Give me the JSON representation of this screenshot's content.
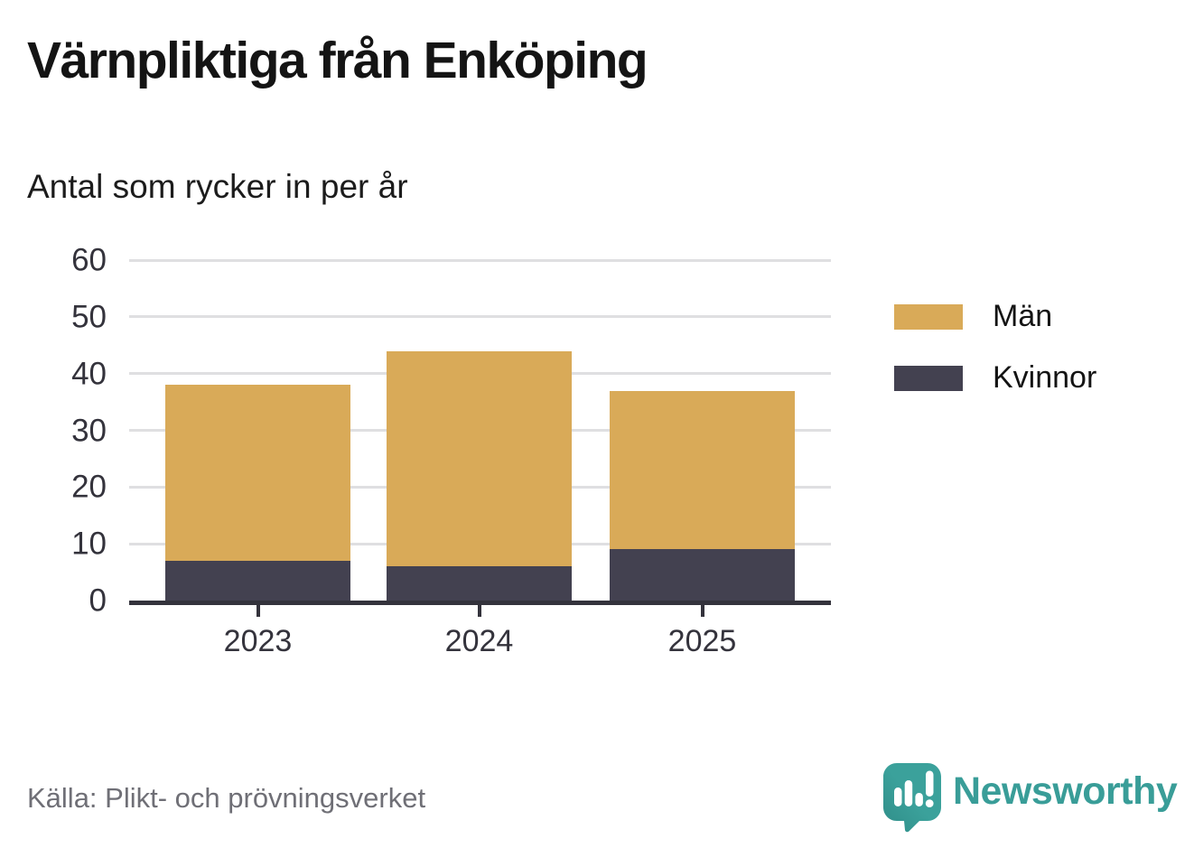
{
  "title": "Värnpliktiga från Enköping",
  "subtitle": "Antal som rycker in per år",
  "source": "Källa: Plikt- och prövningsverket",
  "branding": {
    "name": "Newsworthy",
    "color": "#399d98"
  },
  "colors": {
    "men": "#d9aa58",
    "women": "#434150",
    "axis": "#34333c",
    "grid": "#dfdfe1",
    "tick_label": "#34333c",
    "source_text": "#6f6f76",
    "background": "#ffffff"
  },
  "legend": [
    {
      "label": "Män",
      "color": "#d9aa58"
    },
    {
      "label": "Kvinnor",
      "color": "#434150"
    }
  ],
  "chart_data": {
    "type": "bar",
    "stacked": true,
    "title": "Värnpliktiga från Enköping",
    "subtitle": "Antal som rycker in per år",
    "categories": [
      "2023",
      "2024",
      "2025"
    ],
    "series": [
      {
        "name": "Män",
        "values": [
          31,
          38,
          28
        ],
        "color": "#d9aa58"
      },
      {
        "name": "Kvinnor",
        "values": [
          7,
          6,
          9
        ],
        "color": "#434150"
      }
    ],
    "stack_bottom": "Kvinnor",
    "totals": [
      38,
      44,
      37
    ],
    "xlabel": "",
    "ylabel": "",
    "ylim": [
      0,
      60
    ],
    "yticks": [
      0,
      10,
      20,
      30,
      40,
      50,
      60
    ],
    "grid": true,
    "legend_position": "right"
  }
}
